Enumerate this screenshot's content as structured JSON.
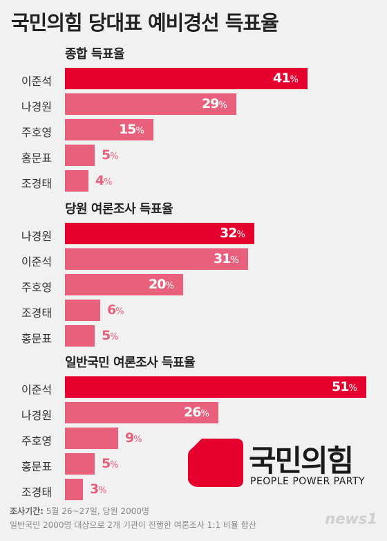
{
  "title": "국민의힘 당대표 예비경선 득표율",
  "colors": {
    "highlight": "#e5002e",
    "normal": "#e9607c",
    "value_highlight": "#ffffff",
    "value_normal": "#e9607c"
  },
  "logo": {
    "name": "국민의힘",
    "sub": "PEOPLE POWER PARTY",
    "icon": "ppp-logo-icon"
  },
  "footnote": {
    "label": "조사기간:",
    "period": " 5월 26~27일, 당원 2000명",
    "line2": "일반국민 2000명 대상으로 2개 기관이 진행한 여론조사 1:1 비율 합산"
  },
  "source": "news1",
  "chart_data": [
    {
      "type": "bar",
      "title": "종합 득표율",
      "unit": "%",
      "categories": [
        "이준석",
        "나경원",
        "주호영",
        "홍문표",
        "조경태"
      ],
      "values": [
        41,
        29,
        15,
        5,
        4
      ]
    },
    {
      "type": "bar",
      "title": "당원 여론조사 득표율",
      "unit": "%",
      "categories": [
        "나경원",
        "이준석",
        "주호영",
        "조경태",
        "홍문표"
      ],
      "values": [
        32,
        31,
        20,
        6,
        5
      ]
    },
    {
      "type": "bar",
      "title": "일반국민 여론조사 득표율",
      "unit": "%",
      "categories": [
        "이준석",
        "나경원",
        "주호영",
        "홍문표",
        "조경태"
      ],
      "values": [
        51,
        26,
        9,
        5,
        3
      ]
    }
  ]
}
